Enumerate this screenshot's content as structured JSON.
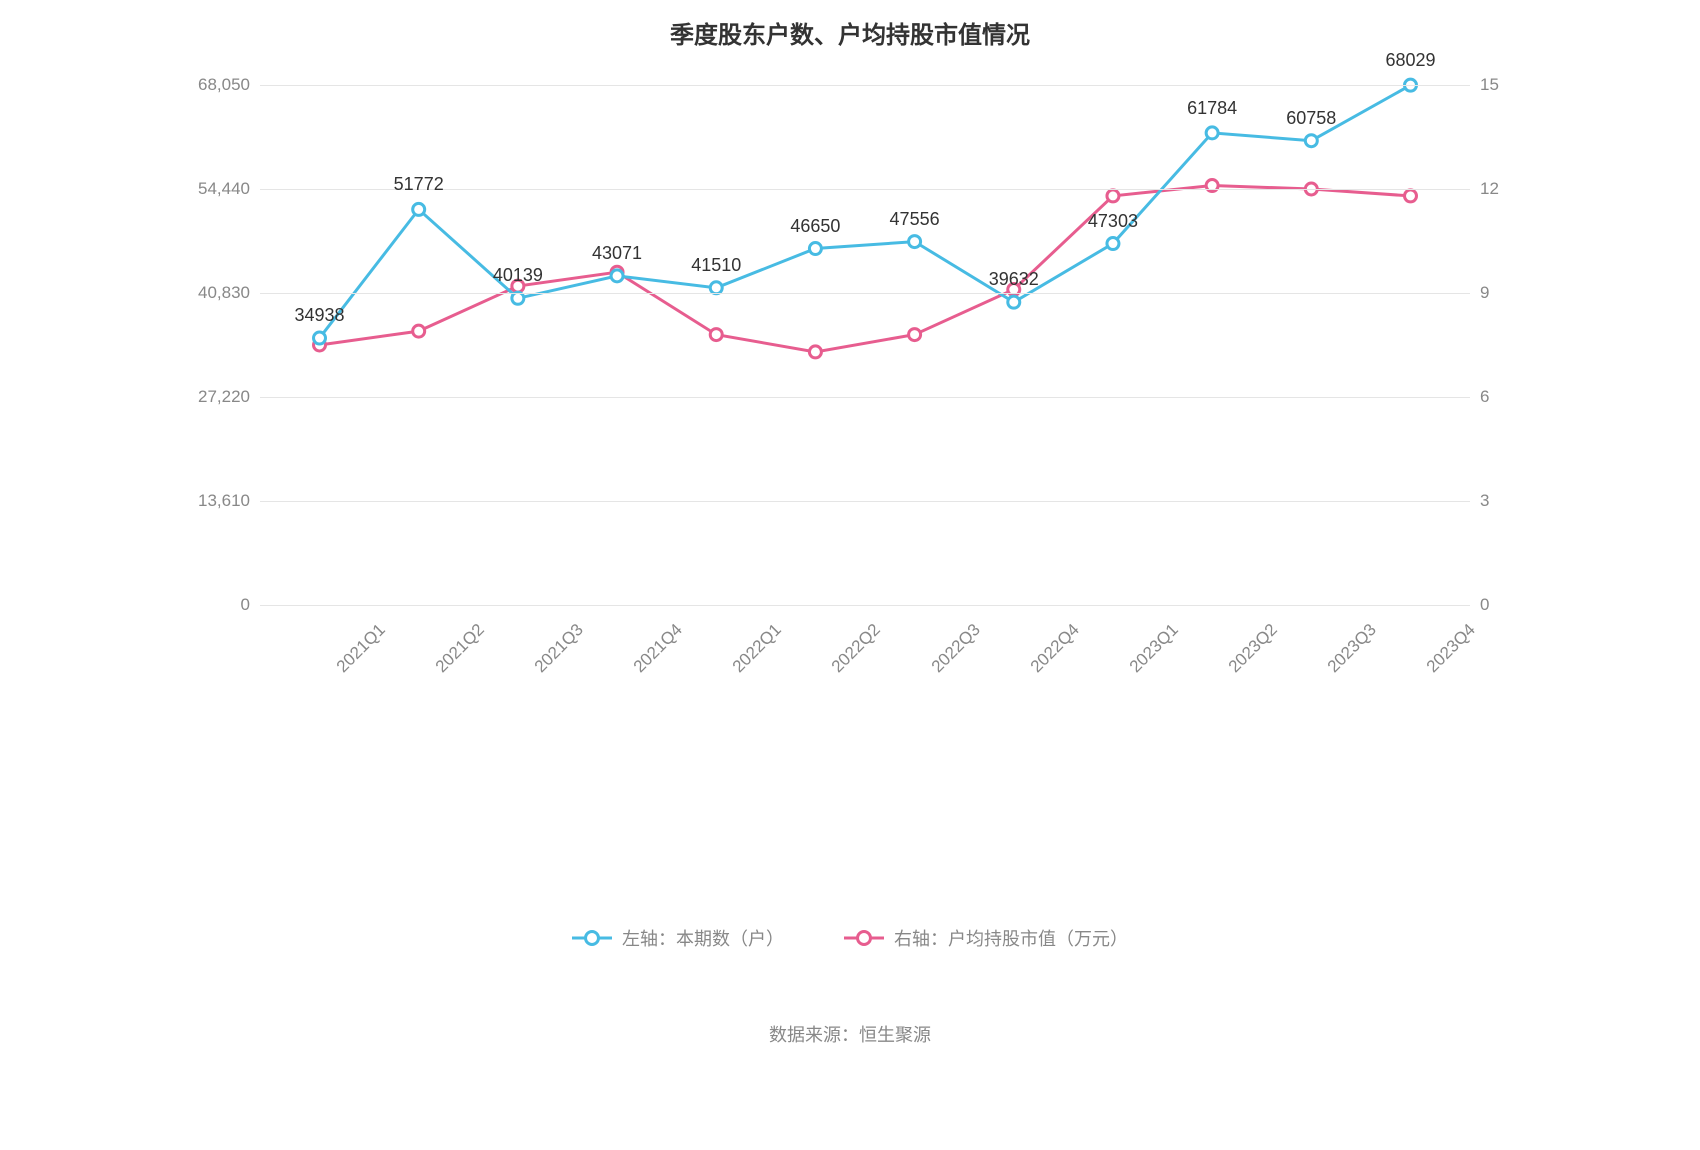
{
  "chart": {
    "type": "line",
    "title": "季度股东户数、户均持股市值情况",
    "title_fontsize": 24,
    "background_color": "#ffffff",
    "grid_color": "#e5e5e5",
    "axis_label_color": "#888888",
    "axis_fontsize": 17,
    "data_label_color": "#333333",
    "data_label_fontsize": 18,
    "categories": [
      "2021Q1",
      "2021Q2",
      "2021Q3",
      "2021Q4",
      "2022Q1",
      "2022Q2",
      "2022Q3",
      "2022Q4",
      "2023Q1",
      "2023Q2",
      "2023Q3",
      "2023Q4"
    ],
    "left_axis": {
      "ticks": [
        0,
        13610,
        27220,
        40830,
        54440,
        68050
      ],
      "tick_labels": [
        "0",
        "13,610",
        "27,220",
        "40,830",
        "54,440",
        "68,050"
      ],
      "min": 0,
      "max": 68050
    },
    "right_axis": {
      "ticks": [
        0,
        3,
        6,
        9,
        12,
        15
      ],
      "tick_labels": [
        "0",
        "3",
        "6",
        "9",
        "12",
        "15"
      ],
      "min": 0,
      "max": 15
    },
    "series1": {
      "name": "左轴：本期数（户）",
      "color": "#47bbe3",
      "line_width": 3,
      "marker_radius": 6,
      "marker_fill": "#ffffff",
      "values": [
        34938,
        51772,
        40139,
        43071,
        41510,
        46650,
        47556,
        39632,
        47303,
        61784,
        60758,
        68029
      ],
      "data_labels": [
        "34938",
        "51772",
        "40139",
        "43071",
        "41510",
        "46650",
        "47556",
        "39632",
        "47303",
        "61784",
        "60758",
        "68029"
      ],
      "label_offsets_y": [
        -12,
        -14,
        -12,
        -12,
        -12,
        -12,
        -12,
        -12,
        -12,
        -14,
        -12,
        -14
      ]
    },
    "series2": {
      "name": "右轴：户均持股市值（万元）",
      "color": "#e75d8f",
      "line_width": 3,
      "marker_radius": 6,
      "marker_fill": "#ffffff",
      "values": [
        7.5,
        7.9,
        9.2,
        9.6,
        7.8,
        7.3,
        7.8,
        9.1,
        11.8,
        12.1,
        12.0,
        11.8
      ]
    },
    "legend": {
      "items": [
        {
          "label": "左轴：本期数（户）",
          "series": "series1"
        },
        {
          "label": "右轴：户均持股市值（万元）",
          "series": "series2"
        }
      ]
    },
    "source_label": "数据来源：恒生聚源"
  }
}
